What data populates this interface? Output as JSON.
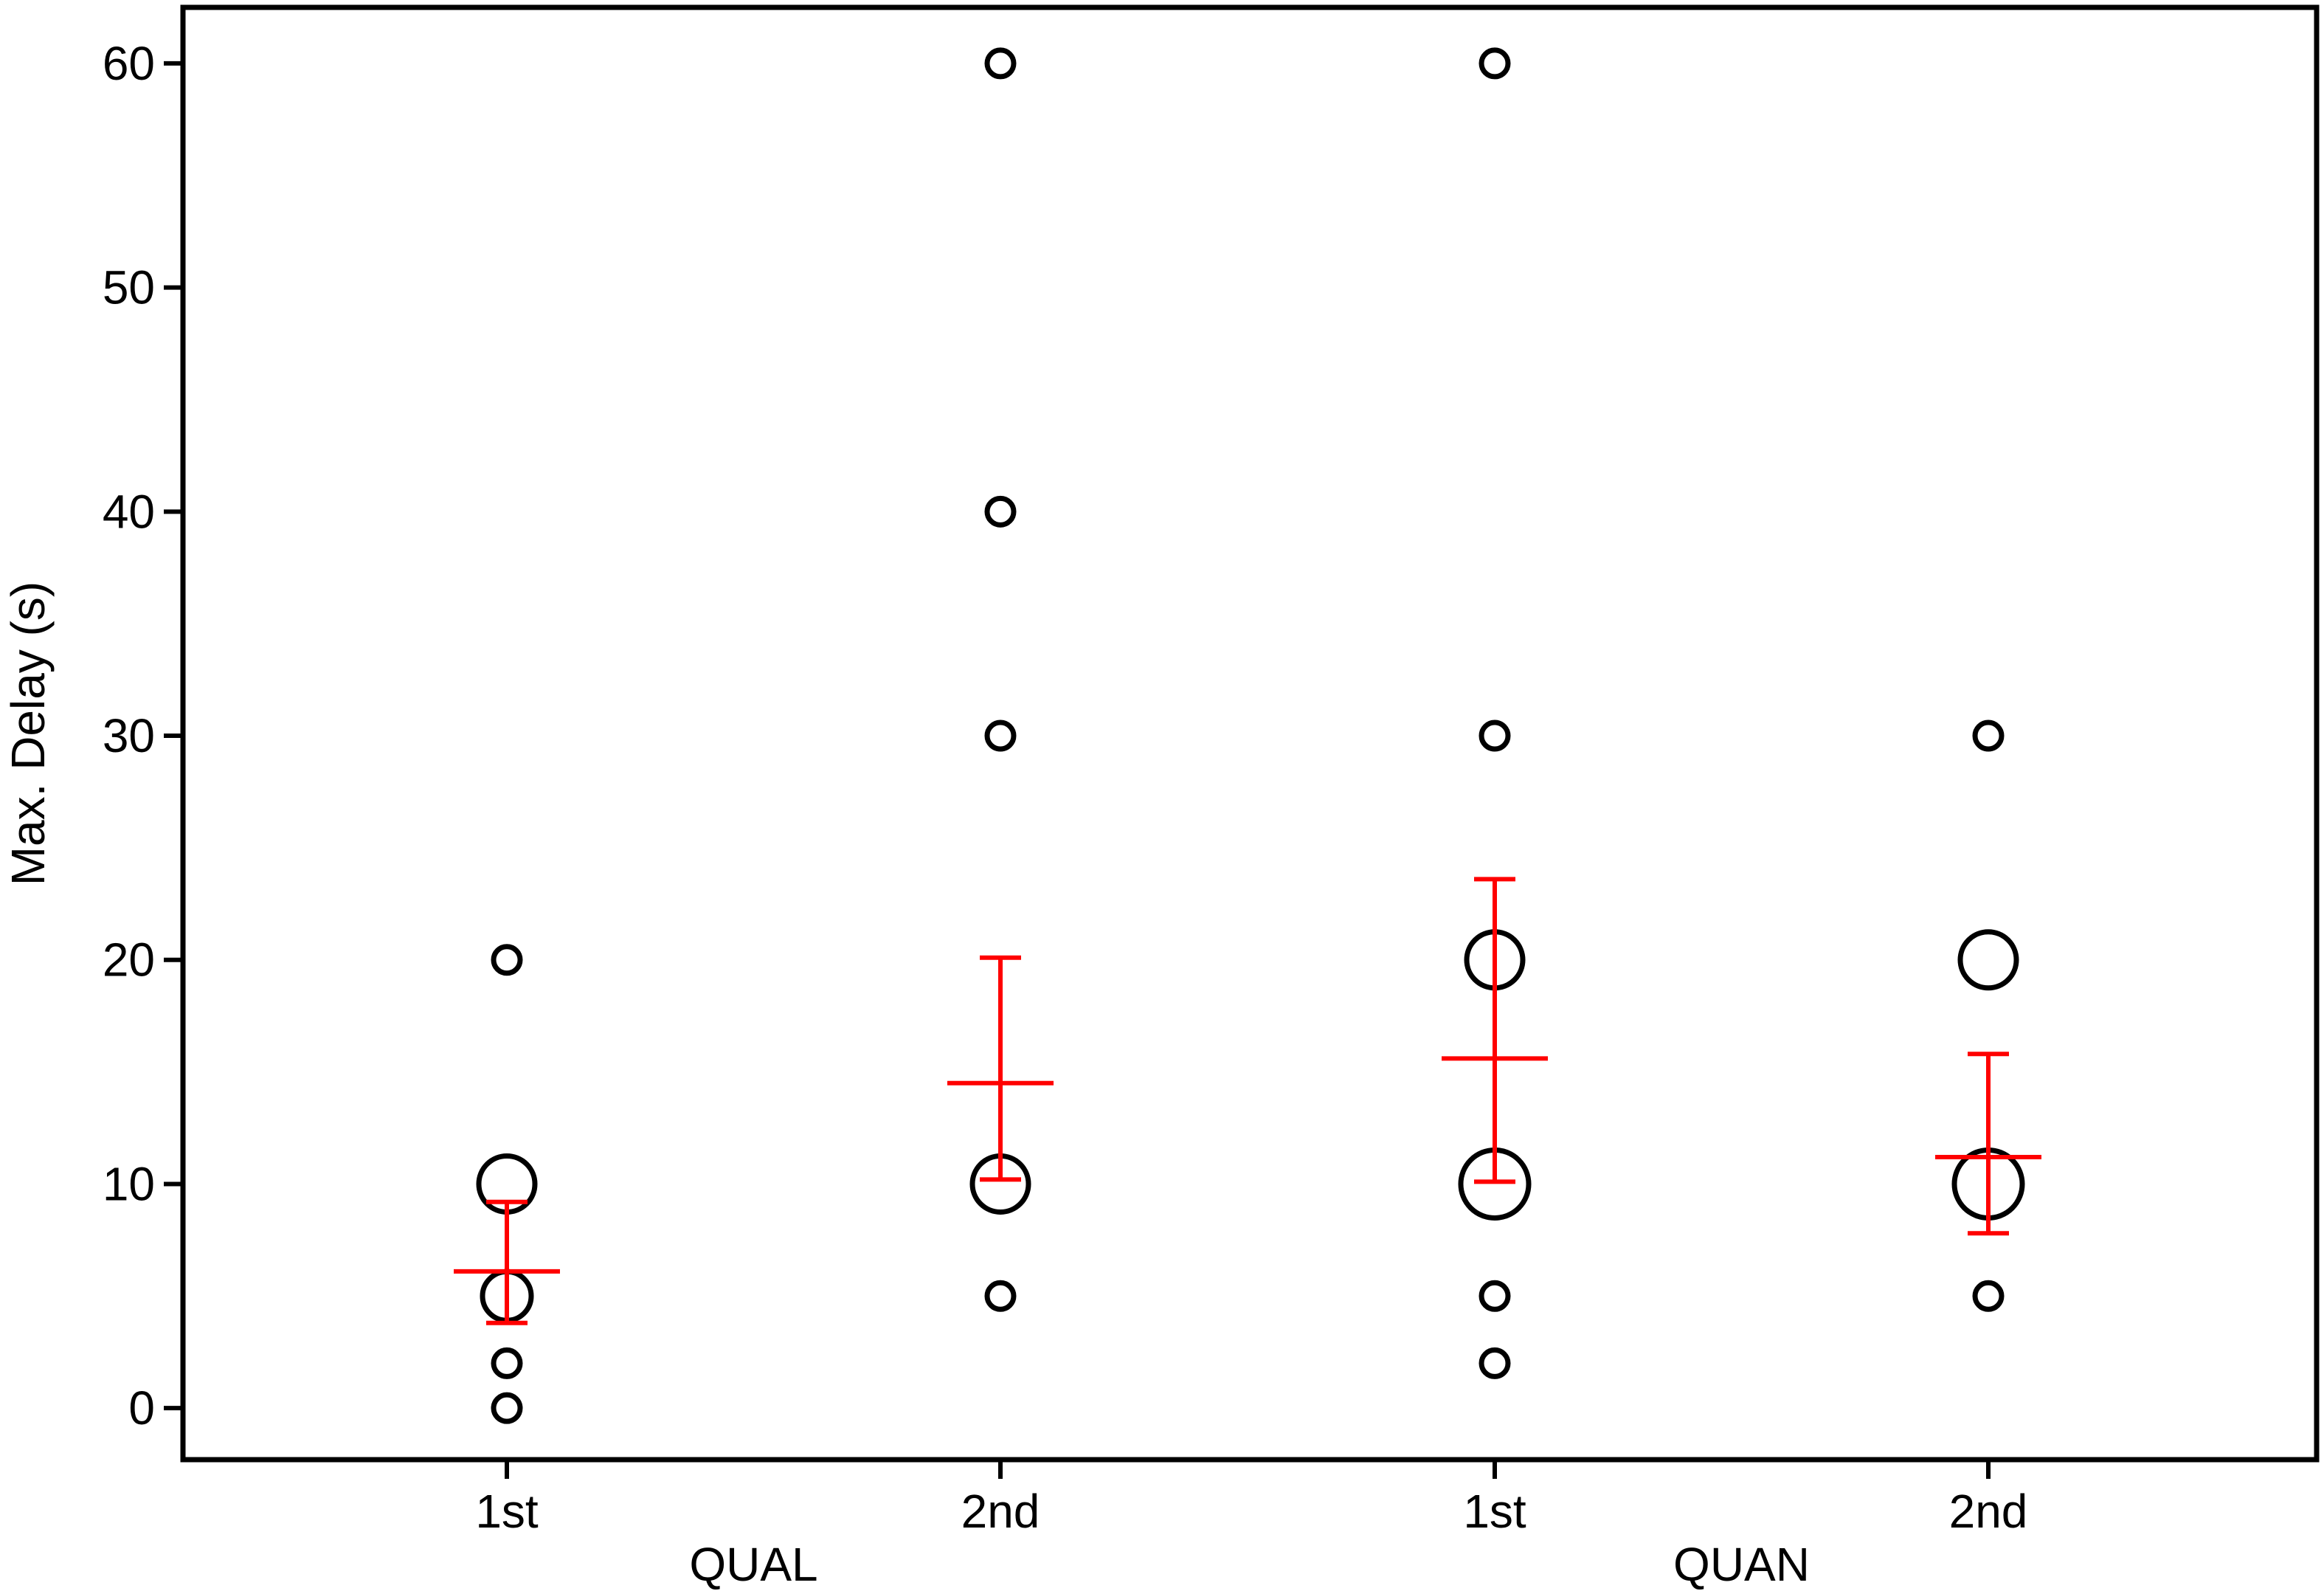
{
  "chart_data": {
    "type": "scatter",
    "title": "",
    "ylabel": "Max. Delay (s)",
    "xlabel": "",
    "ylim": [
      -2.3,
      62.5
    ],
    "yticks": [
      0,
      10,
      20,
      30,
      40,
      50,
      60
    ],
    "grid": false,
    "categories": [
      "1st",
      "2nd",
      "1st",
      "2nd"
    ],
    "groups": [
      {
        "label": "QUAL",
        "categories": [
          0,
          1
        ]
      },
      {
        "label": "QUAN",
        "categories": [
          2,
          3
        ]
      }
    ],
    "points": [
      {
        "category": 0,
        "value": 20,
        "size": "small"
      },
      {
        "category": 0,
        "value": 10,
        "size": "large"
      },
      {
        "category": 0,
        "value": 5,
        "size": "medium"
      },
      {
        "category": 0,
        "value": 2,
        "size": "small"
      },
      {
        "category": 0,
        "value": 0,
        "size": "small"
      },
      {
        "category": 1,
        "value": 60,
        "size": "small"
      },
      {
        "category": 1,
        "value": 40,
        "size": "small"
      },
      {
        "category": 1,
        "value": 30,
        "size": "small"
      },
      {
        "category": 1,
        "value": 10,
        "size": "large"
      },
      {
        "category": 1,
        "value": 5,
        "size": "small"
      },
      {
        "category": 2,
        "value": 60,
        "size": "small"
      },
      {
        "category": 2,
        "value": 30,
        "size": "small"
      },
      {
        "category": 2,
        "value": 20,
        "size": "large"
      },
      {
        "category": 2,
        "value": 10,
        "size": "xlarge"
      },
      {
        "category": 2,
        "value": 5,
        "size": "small"
      },
      {
        "category": 2,
        "value": 2,
        "size": "small"
      },
      {
        "category": 3,
        "value": 30,
        "size": "small"
      },
      {
        "category": 3,
        "value": 20,
        "size": "large"
      },
      {
        "category": 3,
        "value": 10,
        "size": "xlarge"
      },
      {
        "category": 3,
        "value": 5,
        "size": "small"
      }
    ],
    "summary": [
      {
        "category": 0,
        "mean": 6.1,
        "lower": 3.8,
        "upper": 9.2
      },
      {
        "category": 1,
        "mean": 14.5,
        "lower": 10.2,
        "upper": 20.1
      },
      {
        "category": 2,
        "mean": 15.6,
        "lower": 10.1,
        "upper": 23.6
      },
      {
        "category": 3,
        "mean": 11.2,
        "lower": 7.8,
        "upper": 15.8
      }
    ],
    "colors": {
      "points": "#000000",
      "summary": "#ff0000",
      "frame": "#000000"
    }
  }
}
